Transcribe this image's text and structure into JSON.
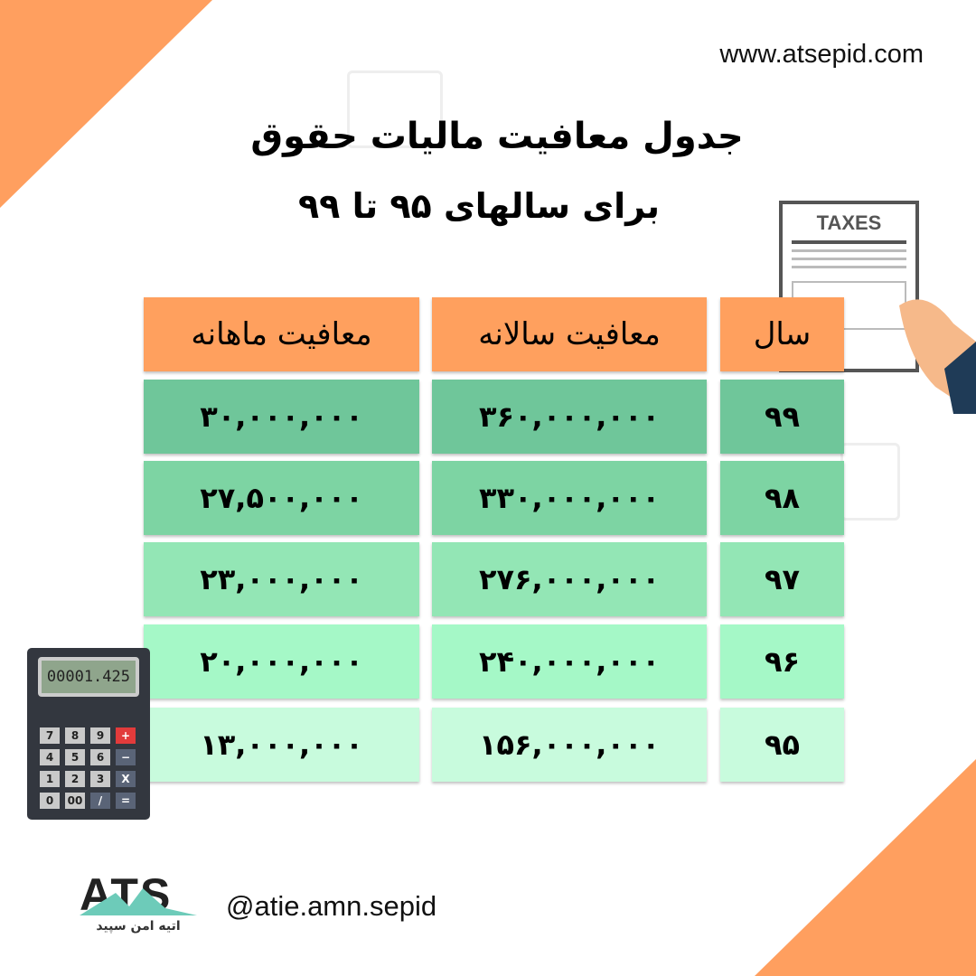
{
  "website": "www.atsepid.com",
  "title_line1": "جدول معافیت مالیات حقوق",
  "title_line2": "برای سالهای ۹۵ تا ۹۹",
  "table": {
    "headers": [
      "سال",
      "معافیت سالانه",
      "معافیت ماهانه"
    ],
    "rows": [
      {
        "year": "۹۹",
        "annual": "۳۶۰,۰۰۰,۰۰۰",
        "monthly": "۳۰,۰۰۰,۰۰۰",
        "color": "#6fc69a"
      },
      {
        "year": "۹۸",
        "annual": "۳۳۰,۰۰۰,۰۰۰",
        "monthly": "۲۷,۵۰۰,۰۰۰",
        "color": "#7dd4a3"
      },
      {
        "year": "۹۷",
        "annual": "۲۷۶,۰۰۰,۰۰۰",
        "monthly": "۲۳,۰۰۰,۰۰۰",
        "color": "#93e6b5"
      },
      {
        "year": "۹۶",
        "annual": "۲۴۰,۰۰۰,۰۰۰",
        "monthly": "۲۰,۰۰۰,۰۰۰",
        "color": "#a5f8c7"
      },
      {
        "year": "۹۵",
        "annual": "۱۵۶,۰۰۰,۰۰۰",
        "monthly": "۱۳,۰۰۰,۰۰۰",
        "color": "#c8fbdd"
      }
    ],
    "header_color": "#ffa05e"
  },
  "taxes_doc_label": "TAXES",
  "calculator": {
    "display": "00001.425",
    "keys": [
      "7",
      "8",
      "9",
      "+",
      "4",
      "5",
      "6",
      "−",
      "1",
      "2",
      "3",
      "X",
      "0",
      "00",
      "/",
      "="
    ]
  },
  "logo": {
    "mark": "ATS",
    "subtitle": "اتیه امن سپید"
  },
  "handle": "@atie.amn.sepid",
  "accent_color": "#ff9f5f"
}
